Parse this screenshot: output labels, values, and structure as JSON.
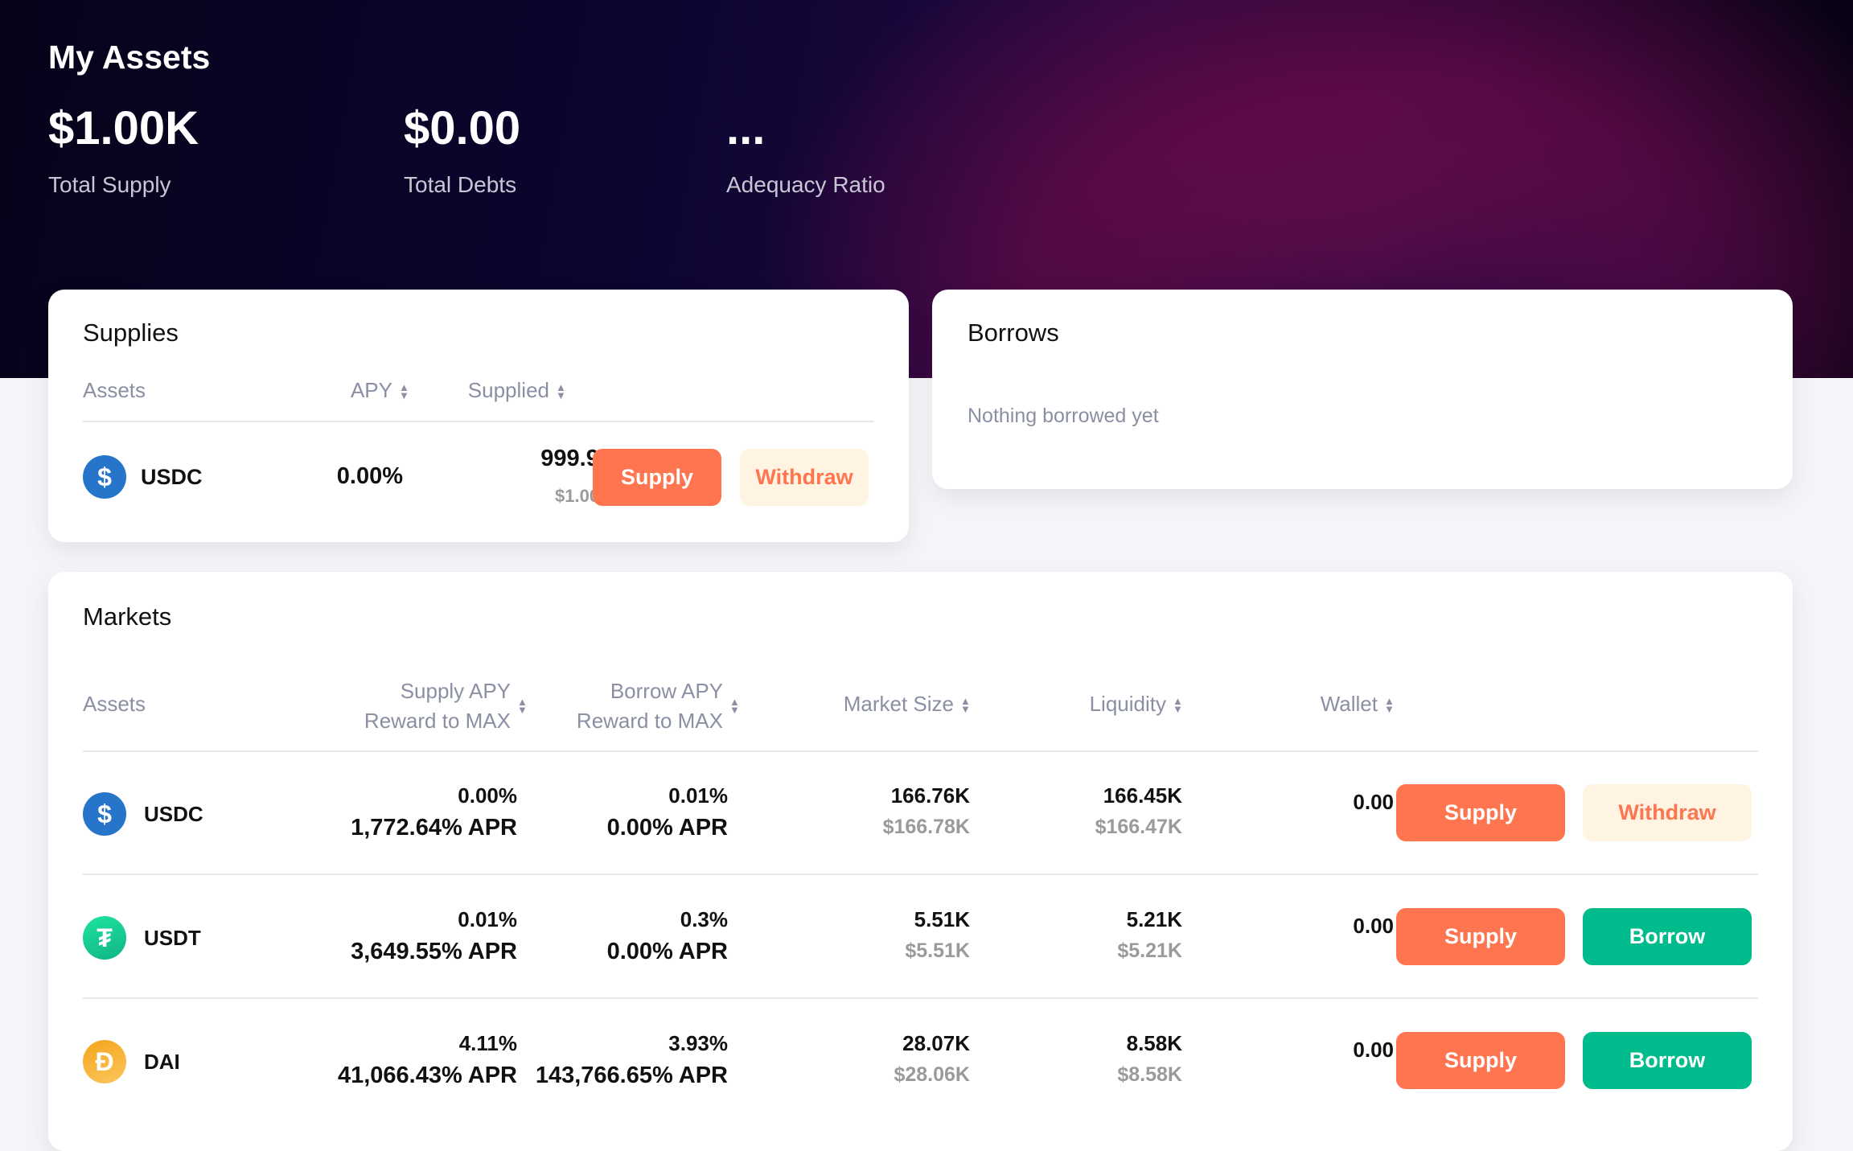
{
  "header": {
    "title": "My Assets",
    "stats": [
      {
        "value": "$1.00K",
        "label": "Total Supply"
      },
      {
        "value": "$0.00",
        "label": "Total Debts"
      },
      {
        "value": "...",
        "label": "Adequacy Ratio"
      }
    ]
  },
  "supplies": {
    "title": "Supplies",
    "columns": [
      "Assets",
      "APY",
      "Supplied"
    ],
    "rows": [
      {
        "asset": "USDC",
        "apy": "0.00%",
        "supplied": "999.99",
        "supplied_usd": "$1.00K",
        "supply_label": "Supply",
        "withdraw_label": "Withdraw"
      }
    ]
  },
  "borrows": {
    "title": "Borrows",
    "empty": "Nothing borrowed yet"
  },
  "markets": {
    "title": "Markets",
    "columns": {
      "assets": "Assets",
      "supply_apy": "Supply APY",
      "supply_reward": "Reward to MAX",
      "borrow_apy": "Borrow APY",
      "borrow_reward": "Reward to MAX",
      "market_size": "Market Size",
      "liquidity": "Liquidity",
      "wallet": "Wallet"
    },
    "rows": [
      {
        "asset": "USDC",
        "icon": "usdc-icon",
        "supply_apy": "0.00%",
        "supply_apr": "1,772.64% APR",
        "borrow_apy": "0.01%",
        "borrow_apr": "0.00% APR",
        "market_size": "166.76K",
        "market_size_usd": "$166.78K",
        "liquidity": "166.45K",
        "liquidity_usd": "$166.47K",
        "wallet": "0.00",
        "btn1": "Supply",
        "btn2": "Withdraw"
      },
      {
        "asset": "USDT",
        "icon": "usdt-icon",
        "supply_apy": "0.01%",
        "supply_apr": "3,649.55% APR",
        "borrow_apy": "0.3%",
        "borrow_apr": "0.00% APR",
        "market_size": "5.51K",
        "market_size_usd": "$5.51K",
        "liquidity": "5.21K",
        "liquidity_usd": "$5.21K",
        "wallet": "0.00",
        "btn1": "Supply",
        "btn2": "Borrow"
      },
      {
        "asset": "DAI",
        "icon": "dai-icon",
        "supply_apy": "4.11%",
        "supply_apr": "41,066.43% APR",
        "borrow_apy": "3.93%",
        "borrow_apr": "143,766.65% APR",
        "market_size": "28.07K",
        "market_size_usd": "$28.06K",
        "liquidity": "8.58K",
        "liquidity_usd": "$8.58K",
        "wallet": "0.00",
        "btn1": "Supply",
        "btn2": "Borrow"
      }
    ]
  },
  "colors": {
    "supply": "#ff7550",
    "withdraw_bg": "#fff3e2",
    "borrow": "#00bc8c",
    "usdc": "#2775ca",
    "usdt": "#1ec99a",
    "dai": "#f5ac37"
  }
}
